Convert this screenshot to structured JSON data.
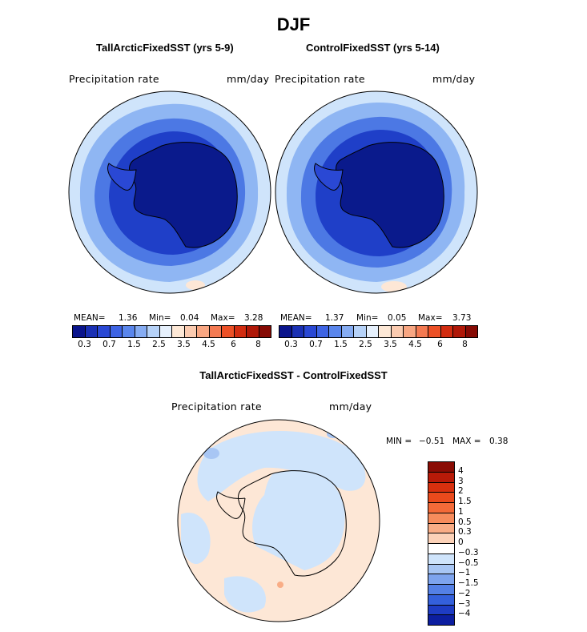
{
  "figure": {
    "title": "DJF"
  },
  "colors": {
    "pole": "#0a1a8c",
    "deep": "#1f3fc8",
    "mid": "#4c78e4",
    "light": "#8fb6f3",
    "pale": "#cfe4fb",
    "peach": "#fde7d6",
    "land_outline": "#000000"
  },
  "chart_data": [
    {
      "type": "heatmap",
      "projection": "south-polar-stereographic",
      "title": "TallArcticFixedSST (yrs 5-9)",
      "variable": "Precipitation rate",
      "units": "mm/day",
      "stats": {
        "mean_label": "MEAN=",
        "mean": "1.36",
        "min_label": "Min=",
        "min": "0.04",
        "max_label": "Max=",
        "max": "3.28"
      },
      "colorbar": {
        "orientation": "horizontal",
        "tick_labels": [
          "0.3",
          "0.7",
          "1.5",
          "2.5",
          "3.5",
          "4.5",
          "6",
          "8"
        ],
        "colors": [
          "#0a148c",
          "#1a30b4",
          "#2a48d4",
          "#3e64e4",
          "#5a86ec",
          "#86acf2",
          "#b6d2f8",
          "#e6f0fc",
          "#fde8d6",
          "#fbcbb0",
          "#f8a682",
          "#f47a52",
          "#ec5026",
          "#d22c10",
          "#b01808",
          "#860a04"
        ]
      }
    },
    {
      "type": "heatmap",
      "projection": "south-polar-stereographic",
      "title": "ControlFixedSST (yrs 5-14)",
      "variable": "Precipitation rate",
      "units": "mm/day",
      "stats": {
        "mean_label": "MEAN=",
        "mean": "1.37",
        "min_label": "Min=",
        "min": "0.05",
        "max_label": "Max=",
        "max": "3.73"
      },
      "colorbar": {
        "orientation": "horizontal",
        "tick_labels": [
          "0.3",
          "0.7",
          "1.5",
          "2.5",
          "3.5",
          "4.5",
          "6",
          "8"
        ],
        "colors": [
          "#0a148c",
          "#1a30b4",
          "#2a48d4",
          "#3e64e4",
          "#5a86ec",
          "#86acf2",
          "#b6d2f8",
          "#e6f0fc",
          "#fde8d6",
          "#fbcbb0",
          "#f8a682",
          "#f47a52",
          "#ec5026",
          "#d22c10",
          "#b01808",
          "#860a04"
        ]
      }
    },
    {
      "type": "heatmap",
      "projection": "south-polar-stereographic",
      "title": "TallArcticFixedSST - ControlFixedSST",
      "variable": "Precipitation rate",
      "units": "mm/day",
      "stats": {
        "min_label": "MIN =",
        "min": "−0.51",
        "max_label": "MAX =",
        "max": "0.38"
      },
      "colorbar": {
        "orientation": "vertical",
        "tick_labels": [
          "4",
          "3",
          "2",
          "1.5",
          "1",
          "0.5",
          "0.3",
          "0",
          "−0.3",
          "−0.5",
          "−1",
          "−1.5",
          "−2",
          "−3",
          "−4"
        ],
        "colors": [
          "#8a0c04",
          "#b81a08",
          "#d8300e",
          "#ea4a1c",
          "#f46a38",
          "#f78c5c",
          "#f9ad86",
          "#fcd2b8",
          "#ffffff",
          "#cfe4fb",
          "#a8c6f4",
          "#7ea4ee",
          "#5480e6",
          "#3460dc",
          "#1e3cc4",
          "#0c1ea0"
        ]
      }
    }
  ]
}
